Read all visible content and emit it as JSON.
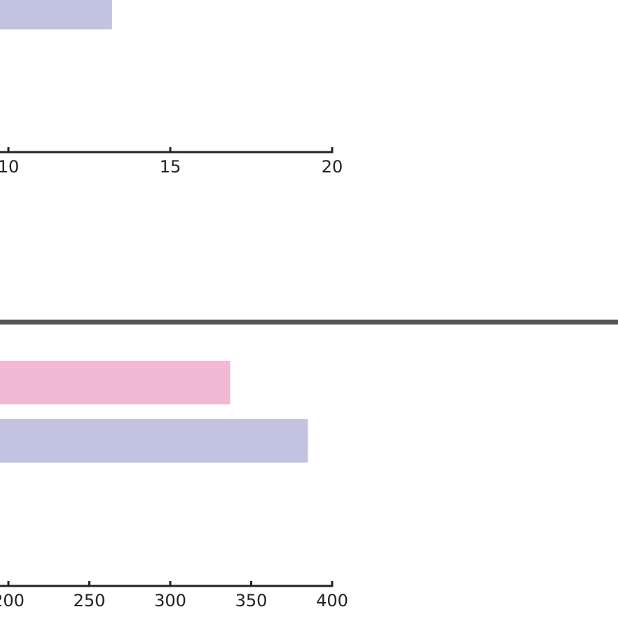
{
  "chart_data": [
    {
      "type": "barh",
      "categories": [
        null
      ],
      "values": [
        13.2
      ],
      "colors": [
        "#c1c3e0"
      ],
      "xlim": [
        9.74,
        20
      ],
      "xticks": [
        10,
        15,
        20
      ]
    },
    {
      "type": "barh",
      "categories": [
        null,
        null
      ],
      "values": [
        337,
        385
      ],
      "colors": [
        "#f2b8d6",
        "#c1c3e0"
      ],
      "xlim": [
        194.8,
        400
      ],
      "xticks": [
        200,
        250,
        300,
        350,
        400
      ]
    }
  ]
}
